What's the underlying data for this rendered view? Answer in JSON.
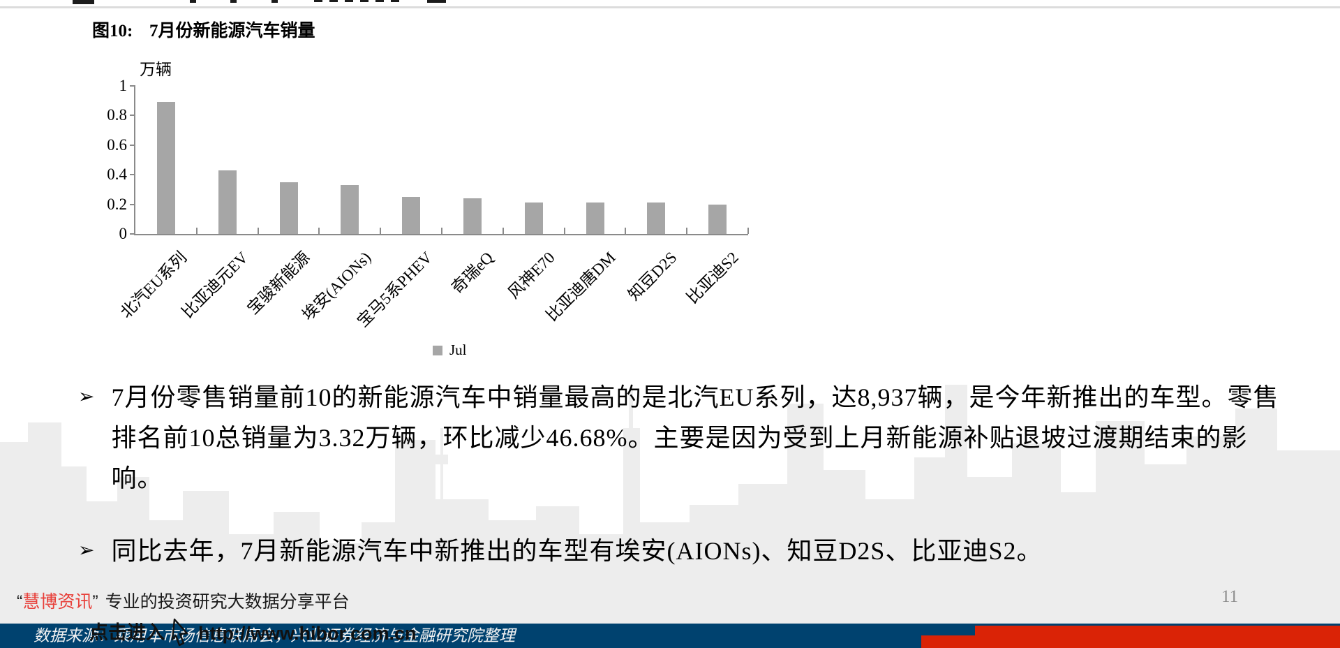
{
  "chart": {
    "figure_label": "图10:",
    "title": "7月份新能源汽车销量",
    "unit_label": "万辆",
    "legend_label": "Jul",
    "bar_color": "#a6a6a6"
  },
  "chart_data": {
    "type": "bar",
    "title": "图10: 7月份新能源汽车销量",
    "xlabel": "",
    "ylabel": "万辆",
    "ylim": [
      0,
      1
    ],
    "yticks": [
      0,
      0.2,
      0.4,
      0.6,
      0.8,
      1
    ],
    "grid": false,
    "legend_position": "bottom",
    "categories": [
      "北汽EU系列",
      "比亚迪元EV",
      "宝骏新能源",
      "埃安(AIONs)",
      "宝马5系PHEV",
      "奇瑞eQ",
      "风神E70",
      "比亚迪唐DM",
      "知豆D2S",
      "比亚迪S2"
    ],
    "series": [
      {
        "name": "Jul",
        "color": "#a6a6a6",
        "values": [
          0.89,
          0.43,
          0.35,
          0.33,
          0.25,
          0.24,
          0.21,
          0.21,
          0.21,
          0.2
        ]
      }
    ]
  },
  "bullets": [
    {
      "marker": "➢",
      "lines": [
        "7月份零售销量前10的新能源汽车中销量最高的是北汽EU系列，达8,937辆，是今年新推出的车型。零售",
        "排名前10总销量为3.32万辆，环比减少46.68%。主要是因为受到上月新能源补贴退坡过渡期结束的影响。"
      ]
    },
    {
      "marker": "➢",
      "lines": [
        "同比去年，7月新能源汽车中新推出的车型有埃安(AIONs)、知豆D2S、比亚迪S2。"
      ]
    }
  ],
  "footer": {
    "brand_quote_open": "“",
    "brand_name": "慧博资讯",
    "brand_quote_close": "”",
    "brand_tagline": "专业的投资研究大数据分享平台",
    "watermark_action": "点击进入",
    "watermark_url": "http://www.hibor.com.cn",
    "watermark_cursor_icon": "mouse-cursor-icon",
    "source_text": "数据来源：乘用车市场信息联席会，兴业证券经济与金融研究院整理",
    "page_number": "11",
    "colors": {
      "navy_bar": "#00426f",
      "red_block": "#da2306",
      "brand_red": "#e8403a"
    }
  }
}
